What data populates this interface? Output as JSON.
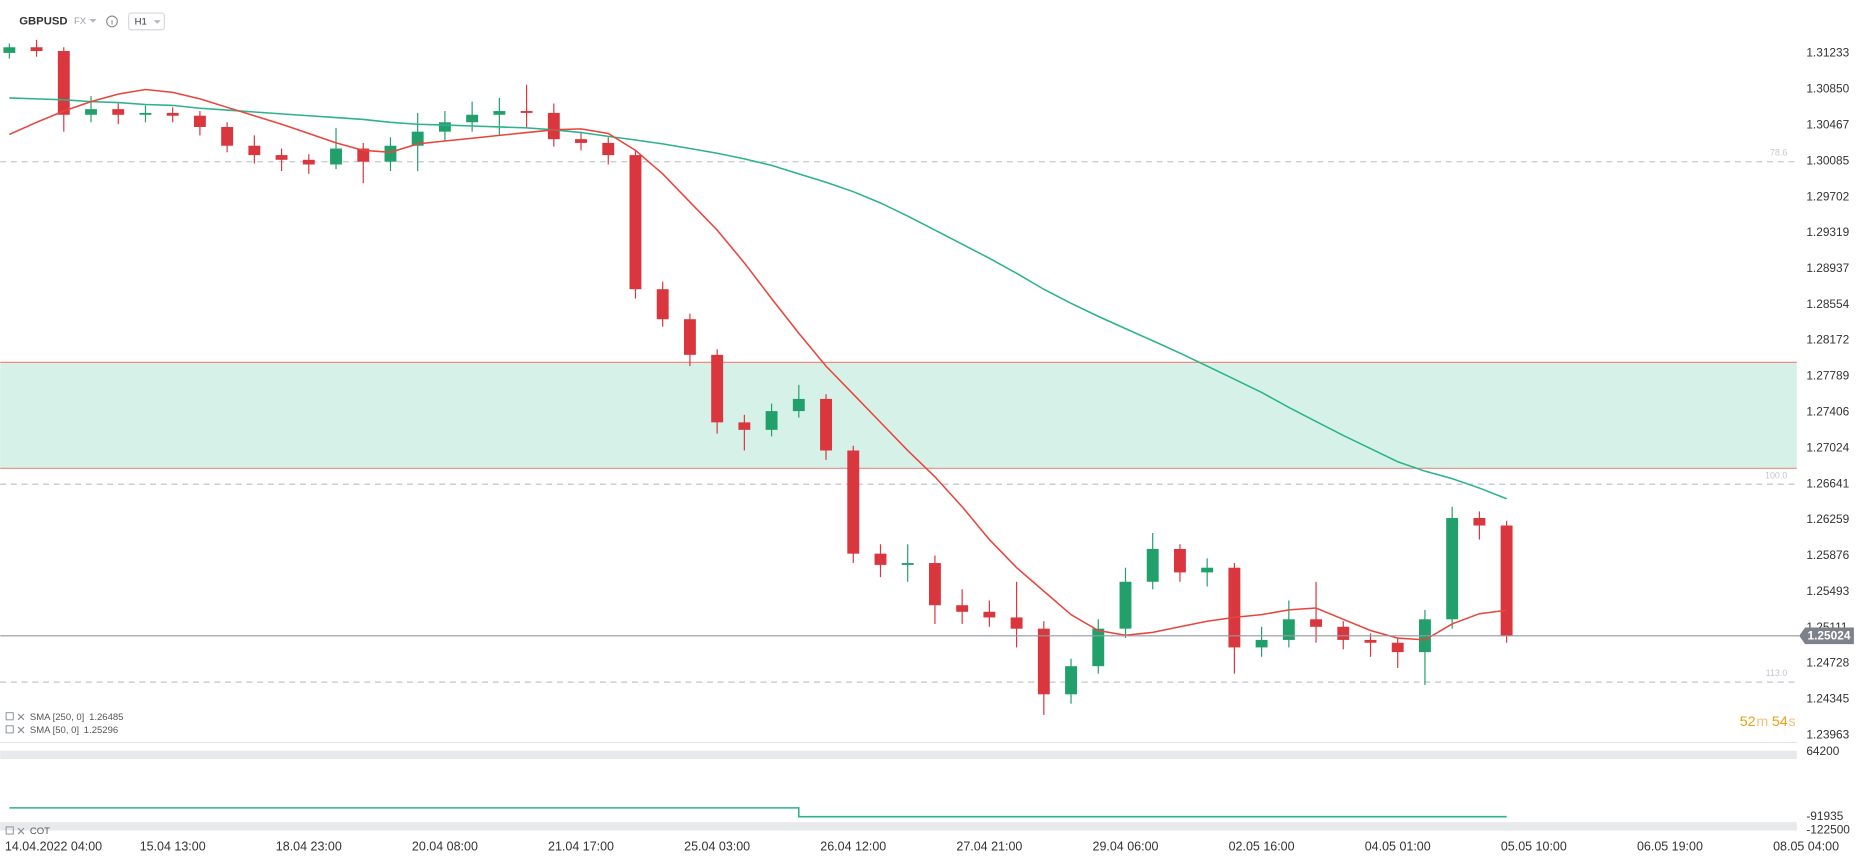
{
  "header": {
    "symbol": "GBPUSD",
    "market": "FX",
    "interval": "H1"
  },
  "countdown": {
    "minutes": "52",
    "minutes_unit": "m",
    "seconds": "54",
    "seconds_unit": "s"
  },
  "chart_data": {
    "type": "candlestick",
    "categories": [
      null,
      "14.04.2022 04:00",
      null,
      null,
      null,
      null,
      "15.04 13:00",
      null,
      null,
      null,
      null,
      "18.04 23:00",
      null,
      null,
      null,
      null,
      "20.04 08:00",
      null,
      null,
      null,
      null,
      "21.04 17:00",
      null,
      null,
      null,
      null,
      "25.04 03:00",
      null,
      null,
      null,
      null,
      "26.04 12:00",
      null,
      null,
      null,
      null,
      "27.04 21:00",
      null,
      null,
      null,
      null,
      "29.04 06:00",
      null,
      null,
      null,
      null,
      "02.05 16:00",
      null,
      null,
      null,
      null,
      "04.05 01:00",
      null,
      null,
      null,
      null,
      "05.05 10:00",
      null,
      null,
      null,
      null,
      "06.05 19:00",
      null,
      null,
      null,
      null,
      "08.05 04:00"
    ],
    "open": [
      1.3124,
      1.313,
      1.3126,
      1.3058,
      1.3064,
      1.3058,
      1.306,
      1.3057,
      1.3045,
      1.3025,
      1.3015,
      1.301,
      1.3005,
      1.3022,
      1.3008,
      1.3025,
      1.304,
      1.305,
      1.3058,
      1.3062,
      1.306,
      1.3032,
      1.3028,
      1.3015,
      1.2872,
      1.284,
      1.2802,
      1.273,
      1.2722,
      1.2742,
      1.2755,
      1.27,
      1.259,
      1.2578,
      1.258,
      1.2535,
      1.2528,
      1.2522,
      1.251,
      1.244,
      1.247,
      1.251,
      1.256,
      1.2595,
      1.257,
      1.2575,
      1.249,
      1.2498,
      1.252,
      1.2512,
      1.2498,
      1.2495,
      1.2485,
      1.252,
      1.2628,
      1.262,
      null,
      null,
      null,
      null,
      null,
      null,
      null,
      null,
      null,
      null,
      null
    ],
    "high": [
      1.3134,
      1.3138,
      1.313,
      1.3078,
      1.307,
      1.3068,
      1.3066,
      1.3062,
      1.305,
      1.3036,
      1.3022,
      1.3016,
      1.3044,
      1.3028,
      1.3034,
      1.306,
      1.3062,
      1.3072,
      1.3076,
      1.309,
      1.307,
      1.304,
      1.3034,
      1.302,
      1.288,
      1.2846,
      1.2808,
      1.2738,
      1.275,
      1.277,
      1.276,
      1.2705,
      1.26,
      1.26,
      1.2588,
      1.2552,
      1.254,
      1.256,
      1.2518,
      1.2478,
      1.252,
      1.2575,
      1.2612,
      1.26,
      1.2585,
      1.258,
      1.2512,
      1.254,
      1.256,
      1.2518,
      1.2505,
      1.25,
      1.253,
      1.264,
      1.2635,
      1.2625,
      null,
      null,
      null,
      null,
      null,
      null,
      null,
      null,
      null,
      null,
      null
    ],
    "low": [
      1.3118,
      1.312,
      1.304,
      1.305,
      1.3048,
      1.305,
      1.305,
      1.3036,
      1.3018,
      1.3006,
      1.2998,
      1.2995,
      1.3,
      1.2985,
      1.2998,
      1.2998,
      1.303,
      1.304,
      1.3036,
      1.3044,
      1.3024,
      1.302,
      1.3005,
      1.2862,
      1.2832,
      1.279,
      1.2718,
      1.27,
      1.2715,
      1.2735,
      1.269,
      1.258,
      1.2565,
      1.256,
      1.2515,
      1.2515,
      1.2512,
      1.249,
      1.2418,
      1.243,
      1.2462,
      1.25,
      1.2552,
      1.256,
      1.2555,
      1.2462,
      1.248,
      1.249,
      1.2495,
      1.2488,
      1.248,
      1.2468,
      1.245,
      1.251,
      1.2605,
      1.2495,
      null,
      null,
      null,
      null,
      null,
      null,
      null,
      null,
      null,
      null,
      null
    ],
    "close": [
      1.313,
      1.3126,
      1.3058,
      1.3064,
      1.3058,
      1.306,
      1.3057,
      1.3045,
      1.3025,
      1.3015,
      1.301,
      1.3005,
      1.3022,
      1.3008,
      1.3025,
      1.304,
      1.305,
      1.3058,
      1.3062,
      1.306,
      1.3032,
      1.3028,
      1.3015,
      1.2872,
      1.284,
      1.2802,
      1.273,
      1.2722,
      1.2742,
      1.2755,
      1.27,
      1.259,
      1.2578,
      1.258,
      1.2535,
      1.2528,
      1.2522,
      1.251,
      1.244,
      1.247,
      1.251,
      1.256,
      1.2595,
      1.257,
      1.2575,
      1.249,
      1.2498,
      1.252,
      1.2512,
      1.2498,
      1.2495,
      1.2485,
      1.252,
      1.2628,
      1.262,
      1.25024,
      null,
      null,
      null,
      null,
      null,
      null,
      null,
      null,
      null,
      null,
      null
    ],
    "up_color": "#22a06b",
    "down_color": "#d9363e",
    "series": [
      {
        "name": "SMA [250, 0]",
        "color": "#2bb38d",
        "values": [
          1.3076,
          1.3075,
          1.3074,
          1.3072,
          1.3071,
          1.3069,
          1.3068,
          1.3065,
          1.3063,
          1.3061,
          1.3059,
          1.3057,
          1.3055,
          1.3053,
          1.305,
          1.3048,
          1.3047,
          1.3046,
          1.3045,
          1.3044,
          1.3042,
          1.3039,
          1.3035,
          1.3031,
          1.3027,
          1.3022,
          1.3017,
          1.3011,
          1.3004,
          1.2995,
          1.2986,
          1.2976,
          1.2964,
          1.295,
          1.2935,
          1.292,
          1.2905,
          1.2889,
          1.2872,
          1.2857,
          1.2843,
          1.283,
          1.2817,
          1.2804,
          1.279,
          1.2776,
          1.2762,
          1.2746,
          1.2731,
          1.2716,
          1.2702,
          1.2688,
          1.2678,
          1.267,
          1.266,
          1.26485,
          null,
          null,
          null,
          null,
          null,
          null,
          null,
          null,
          null,
          null,
          null
        ]
      },
      {
        "name": "SMA [50, 0]",
        "color": "#e8453c",
        "values": [
          1.3037,
          1.305,
          1.3062,
          1.3072,
          1.308,
          1.3085,
          1.3082,
          1.3075,
          1.3066,
          1.3057,
          1.3048,
          1.3038,
          1.3028,
          1.302,
          1.3018,
          1.3027,
          1.303,
          1.3033,
          1.3036,
          1.3039,
          1.3042,
          1.3043,
          1.3038,
          1.302,
          1.2995,
          1.2965,
          1.2935,
          1.29,
          1.2862,
          1.2825,
          1.279,
          1.276,
          1.273,
          1.27,
          1.2672,
          1.264,
          1.2605,
          1.2575,
          1.255,
          1.2525,
          1.2508,
          1.2503,
          1.2506,
          1.2512,
          1.2518,
          1.2522,
          1.2525,
          1.253,
          1.2532,
          1.252,
          1.2508,
          1.25,
          1.2498,
          1.2515,
          1.2526,
          1.25296,
          null,
          null,
          null,
          null,
          null,
          null,
          null,
          null,
          null,
          null,
          null
        ]
      },
      {
        "name": "COT",
        "color": "#2bb38d",
        "axis": "y2",
        "values": [
          -70800,
          -70800,
          -70800,
          -70800,
          -70800,
          -70800,
          -70800,
          -70800,
          -70800,
          -70800,
          -70800,
          -70800,
          -70800,
          -70800,
          -70800,
          -70800,
          -70800,
          -70800,
          -70800,
          -70800,
          -70800,
          -70800,
          -70800,
          -70800,
          -70800,
          -70800,
          -70800,
          -70800,
          -70800,
          -91935,
          -91935,
          -91935,
          -91935,
          -91935,
          -91935,
          -91935,
          -91935,
          -91935,
          -91935,
          -91935,
          -91935,
          -91935,
          -91935,
          -91935,
          -91935,
          -91935,
          -91935,
          -91935,
          -91935,
          -91935,
          -91935,
          -91935,
          -91935,
          -91935,
          -91935,
          -91935,
          null,
          null,
          null,
          null,
          null,
          null,
          null,
          null,
          null,
          null,
          null
        ]
      }
    ],
    "ylim": [
      1.23874,
      1.31804
    ],
    "yticks": [
      1.31233,
      {
        "value": 1.3085,
        "label": "1.30850"
      },
      1.30467,
      1.30085,
      1.29702,
      1.29319,
      1.28937,
      1.28554,
      1.28172,
      1.27789,
      1.27406,
      1.27024,
      1.26641,
      1.26259,
      1.25876,
      1.25493,
      1.25111,
      1.24728,
      1.24345,
      1.23963
    ],
    "y2lim": [
      -122500,
      64200
    ],
    "y2ticks": [
      64200,
      -122500
    ],
    "grid": false,
    "zone": {
      "low": 1.2681,
      "high": 1.2794,
      "fill": "#d6f2e8",
      "stroke": "#ee8a82"
    },
    "levels": [
      {
        "label": "78.6",
        "value": 1.3008
      },
      {
        "label": "100.0",
        "value": 1.2664
      },
      {
        "label": "113.0",
        "value": 1.2453
      }
    ]
  }
}
